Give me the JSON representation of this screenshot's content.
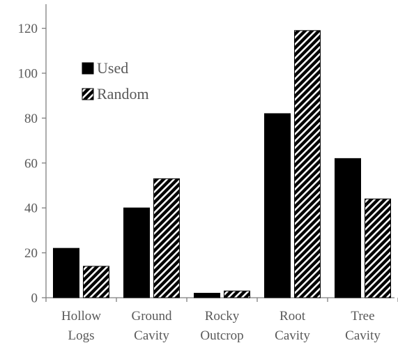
{
  "chart_data": {
    "type": "bar",
    "title": "",
    "xlabel": "",
    "ylabel": "",
    "ylim": [
      0,
      130
    ],
    "yticks": [
      0,
      20,
      40,
      60,
      80,
      100,
      120
    ],
    "grid": false,
    "legend_position": "upper-left",
    "categories": [
      [
        "Hollow",
        "Logs"
      ],
      [
        "Ground",
        "Cavity"
      ],
      [
        "Rocky",
        "Outcrop"
      ],
      [
        "Root",
        "Cavity"
      ],
      [
        "Tree",
        "Cavity"
      ]
    ],
    "series": [
      {
        "name": "Used",
        "fill": "solid",
        "color": "#000000",
        "values": [
          22,
          40,
          2,
          82,
          62
        ]
      },
      {
        "name": "Random",
        "fill": "diagonal-stripes",
        "color": "#000000",
        "values": [
          14,
          53,
          3,
          119,
          44
        ]
      }
    ]
  }
}
